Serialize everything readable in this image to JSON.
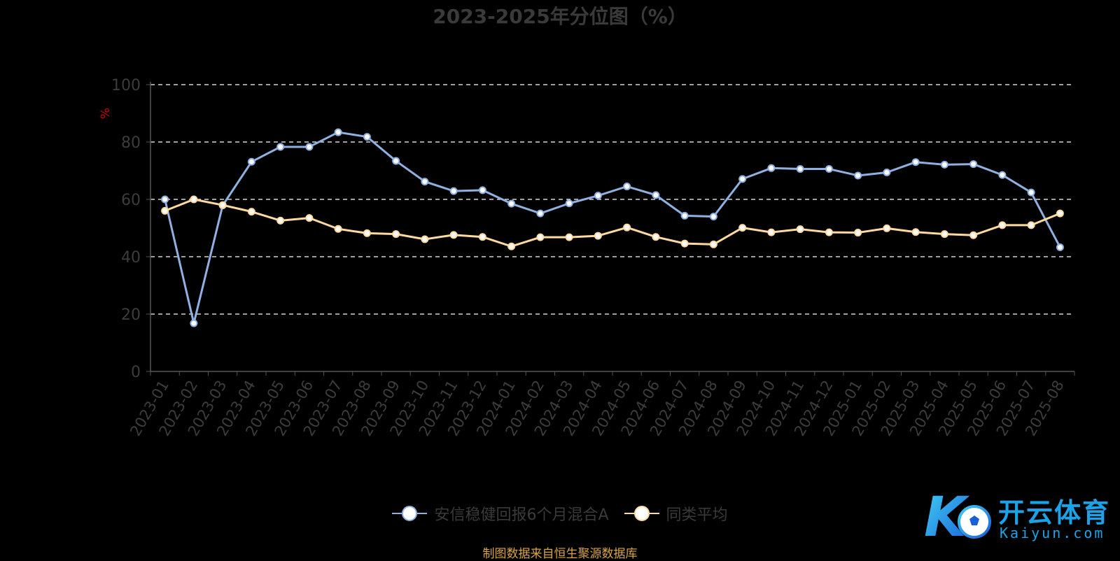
{
  "title": "2023-2025年分位图（%）",
  "source_note": "制图数据来自恒生聚源数据库",
  "watermark": {
    "brand": "开云体育",
    "domain": "Kaiyun.com",
    "logo_glyph": "K"
  },
  "colors": {
    "background": "#000000",
    "fund": "#8fb0e0",
    "peer": "#ffd9a0",
    "axis": "#555555",
    "tick_text": "#3c3c3c",
    "grid": "#ffffff",
    "unit": "#cc0000",
    "source": "#d9a441"
  },
  "chart_data": {
    "type": "line",
    "ylabel": "%",
    "ylim": [
      0,
      100
    ],
    "yticks": [
      0,
      20,
      40,
      60,
      80,
      100
    ],
    "grid": "dashed horizontal",
    "legend_position": "bottom-center",
    "categories": [
      "2023-01",
      "2023-02",
      "2023-03",
      "2023-04",
      "2023-05",
      "2023-06",
      "2023-07",
      "2023-08",
      "2023-09",
      "2023-10",
      "2023-11",
      "2023-12",
      "2024-01",
      "2024-02",
      "2024-03",
      "2024-04",
      "2024-05",
      "2024-06",
      "2024-07",
      "2024-08",
      "2024-09",
      "2024-10",
      "2024-11",
      "2024-12",
      "2025-01",
      "2025-02",
      "2025-03",
      "2025-04",
      "2025-05",
      "2025-06",
      "2025-07",
      "2025-08"
    ],
    "series": [
      {
        "name": "安信稳健回报6个月混合A",
        "values": [
          60.0,
          16.8,
          57.9,
          73.1,
          78.3,
          78.3,
          83.4,
          81.8,
          73.4,
          66.2,
          62.9,
          63.2,
          58.5,
          55.1,
          58.6,
          61.3,
          64.5,
          61.5,
          54.3,
          54.0,
          67.1,
          70.9,
          70.6,
          70.6,
          68.3,
          69.4,
          73.0,
          72.1,
          72.3,
          68.5,
          62.4,
          43.3
        ]
      },
      {
        "name": "同类平均",
        "values": [
          56.0,
          60.0,
          58.0,
          55.7,
          52.6,
          53.5,
          49.7,
          48.2,
          47.9,
          46.1,
          47.6,
          46.9,
          43.6,
          46.8,
          46.8,
          47.3,
          50.2,
          46.9,
          44.6,
          44.3,
          50.1,
          48.5,
          49.6,
          48.5,
          48.4,
          49.9,
          48.6,
          47.9,
          47.5,
          51.0,
          51.0,
          55.1
        ]
      }
    ]
  }
}
